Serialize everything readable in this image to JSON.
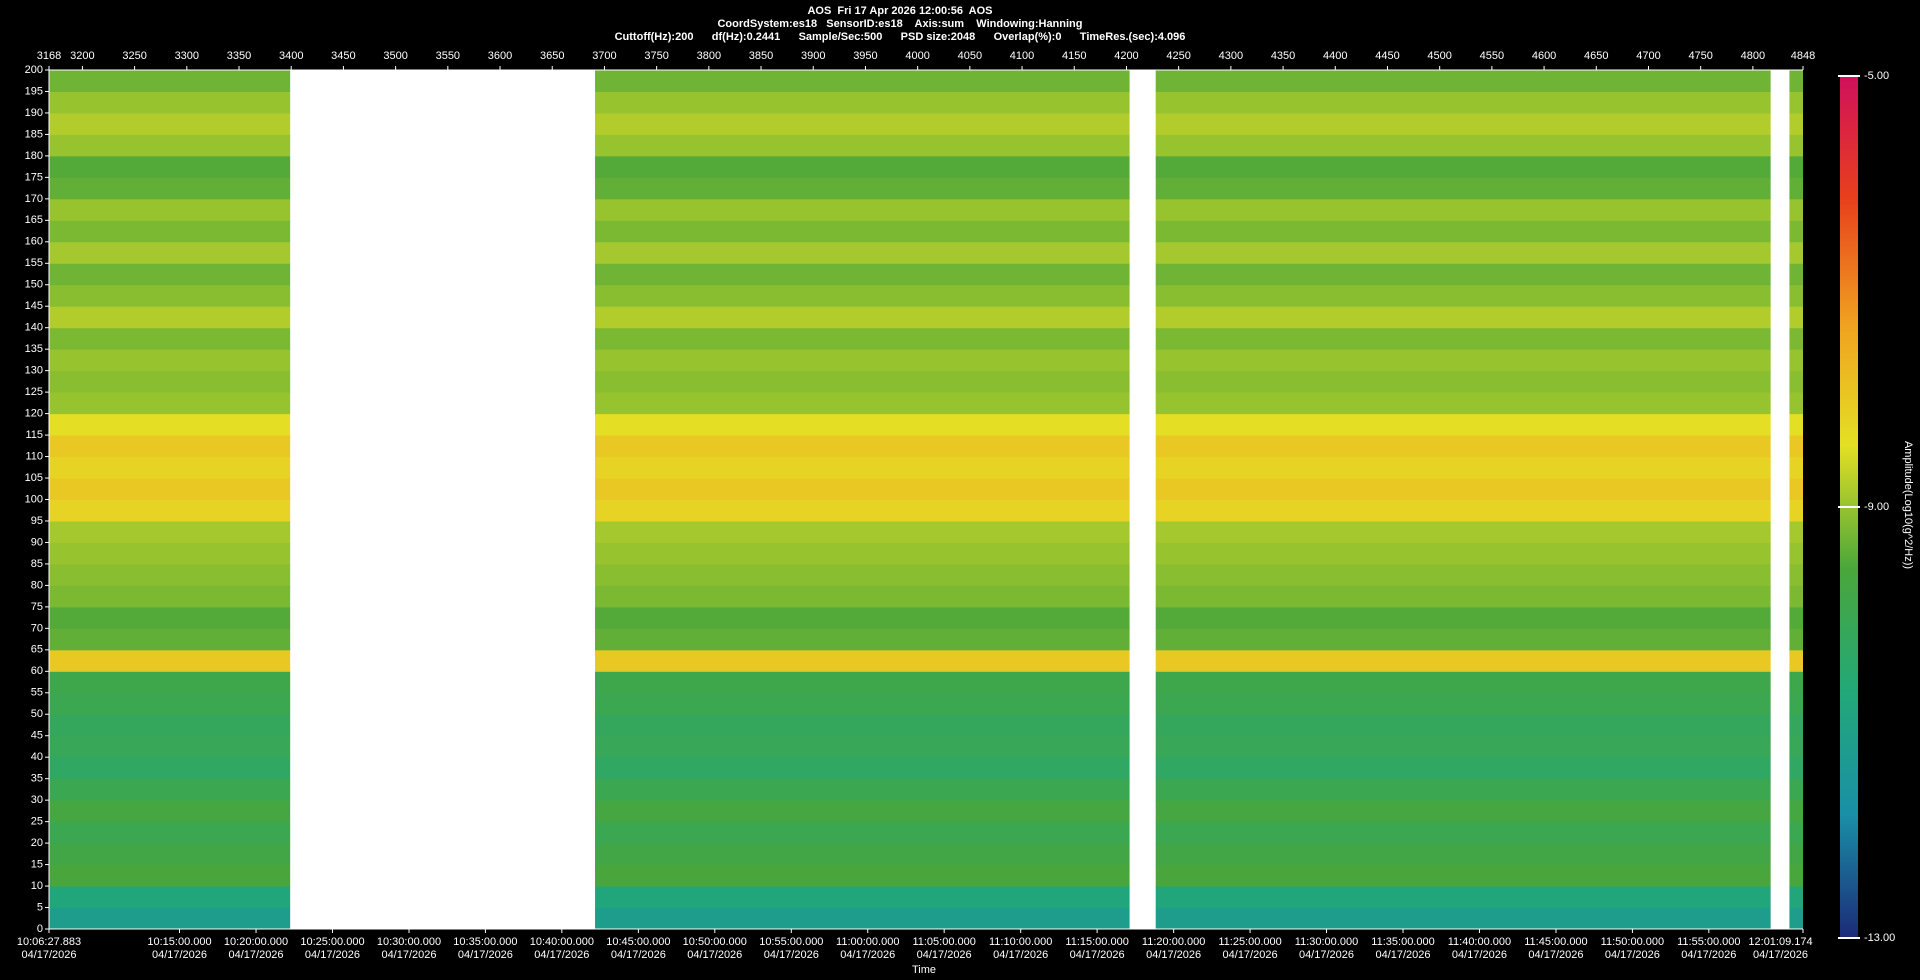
{
  "chart_data": {
    "type": "heatmap",
    "title": "AOS  Fri 17 Apr 2026 12:00:56  AOS",
    "subtitle": "CoordSystem:es18   SensorID:es18    Axis:sum    Windowing:Hanning",
    "settings_line": "Cuttoff(Hz):200      df(Hz):0.2441      Sample/Sec:500      PSD size:2048      Overlap(%):0      TimeRes.(sec):4.096",
    "xlabel": "Time",
    "colorbar_label": "Amplitude(Log10(g^2/Hz))",
    "xlim": [
      3168,
      4848
    ],
    "xticks": [
      3168,
      3200,
      3250,
      3300,
      3350,
      3400,
      3450,
      3500,
      3550,
      3600,
      3650,
      3700,
      3750,
      3800,
      3850,
      3900,
      3950,
      4000,
      4050,
      4100,
      4150,
      4200,
      4250,
      4300,
      4350,
      4400,
      4450,
      4500,
      4550,
      4600,
      4650,
      4700,
      4750,
      4800,
      4848
    ],
    "x2ticks": [
      {
        "value": 3168,
        "label": "10:06:27.883\n04/17/2026"
      },
      {
        "value": 3293.0,
        "label": "10:15:00.000\n04/17/2026"
      },
      {
        "value": 3366.3,
        "label": "10:20:00.000\n04/17/2026"
      },
      {
        "value": 3439.5,
        "label": "10:25:00.000\n04/17/2026"
      },
      {
        "value": 3512.8,
        "label": "10:30:00.000\n04/17/2026"
      },
      {
        "value": 3586.0,
        "label": "10:35:00.000\n04/17/2026"
      },
      {
        "value": 3659.2,
        "label": "10:40:00.000\n04/17/2026"
      },
      {
        "value": 3732.5,
        "label": "10:45:00.000\n04/17/2026"
      },
      {
        "value": 3805.7,
        "label": "10:50:00.000\n04/17/2026"
      },
      {
        "value": 3879.0,
        "label": "10:55:00.000\n04/17/2026"
      },
      {
        "value": 3952.2,
        "label": "11:00:00.000\n04/17/2026"
      },
      {
        "value": 4025.4,
        "label": "11:05:00.000\n04/17/2026"
      },
      {
        "value": 4098.7,
        "label": "11:10:00.000\n04/17/2026"
      },
      {
        "value": 4171.9,
        "label": "11:15:00.000\n04/17/2026"
      },
      {
        "value": 4245.2,
        "label": "11:20:00.000\n04/17/2026"
      },
      {
        "value": 4318.4,
        "label": "11:25:00.000\n04/17/2026"
      },
      {
        "value": 4391.6,
        "label": "11:30:00.000\n04/17/2026"
      },
      {
        "value": 4464.9,
        "label": "11:35:00.000\n04/17/2026"
      },
      {
        "value": 4538.1,
        "label": "11:40:00.000\n04/17/2026"
      },
      {
        "value": 4611.4,
        "label": "11:45:00.000\n04/17/2026"
      },
      {
        "value": 4684.6,
        "label": "11:50:00.000\n04/17/2026"
      },
      {
        "value": 4757.8,
        "label": "11:55:00.000\n04/17/2026"
      },
      {
        "value": 4848,
        "label": "12:01:09.174\n04/17/2026"
      }
    ],
    "ylim": [
      0,
      200
    ],
    "yticks": [
      0,
      5,
      10,
      15,
      20,
      25,
      30,
      35,
      40,
      45,
      50,
      55,
      60,
      65,
      70,
      75,
      80,
      85,
      90,
      95,
      100,
      105,
      110,
      115,
      120,
      125,
      130,
      135,
      140,
      145,
      150,
      155,
      160,
      165,
      170,
      175,
      180,
      185,
      190,
      195,
      200
    ],
    "segments": [
      [
        3168,
        3399
      ],
      [
        3691,
        4203
      ],
      [
        4228,
        4817
      ],
      [
        4835,
        4848
      ]
    ],
    "values": [
      -11.2,
      -10.8,
      -9.6,
      -9.8,
      -10.0,
      -9.7,
      -10.0,
      -10.3,
      -10.1,
      -10.2,
      -10.0,
      -9.9,
      -8.0,
      -9.4,
      -9.5,
      -9.2,
      -9.1,
      -9.0,
      -8.9,
      -8.2,
      -8.0,
      -8.2,
      -8.0,
      -8.4,
      -9.0,
      -9.1,
      -9.0,
      -9.2,
      -8.8,
      -9.1,
      -9.3,
      -8.9,
      -9.2,
      -9.0,
      -9.4,
      -9.5,
      -9.0,
      -8.8,
      -9.0,
      -9.3
    ],
    "clim": [
      -13,
      -5
    ],
    "cticks": [
      {
        "value": -13,
        "label": "-13.00"
      },
      {
        "value": -9,
        "label": "-9.00"
      },
      {
        "value": -5,
        "label": "-5.00"
      }
    ],
    "colormap": [
      "#1c2a78",
      "#1a8fa6",
      "#22a878",
      "#4aa63a",
      "#e4e024",
      "#f0a020",
      "#e8401c",
      "#d0105c"
    ]
  }
}
